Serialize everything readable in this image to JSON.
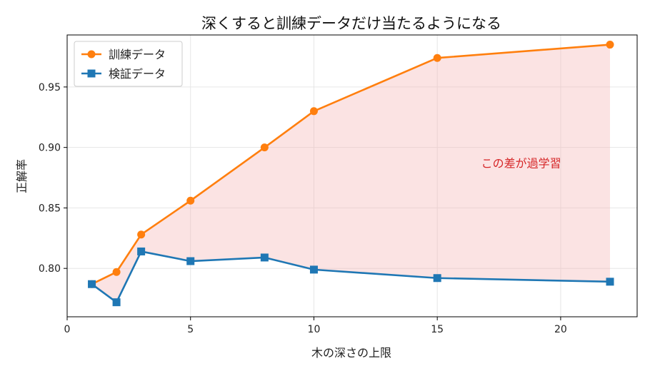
{
  "chart_data": {
    "type": "line",
    "title": "深くすると訓練データだけ当たるようになる",
    "xlabel": "木の深さの上限",
    "ylabel": "正解率",
    "xlim": [
      0,
      23.1
    ],
    "ylim": [
      0.76,
      0.993
    ],
    "x_ticks": [
      0,
      5,
      10,
      15,
      20
    ],
    "y_ticks": [
      0.8,
      0.85,
      0.9,
      0.95
    ],
    "x_tick_labels": [
      "0",
      "5",
      "10",
      "15",
      "20"
    ],
    "y_tick_labels": [
      "0.80",
      "0.85",
      "0.90",
      "0.95"
    ],
    "grid": true,
    "legend_position": "top-left",
    "x": [
      1,
      2,
      3,
      5,
      8,
      10,
      15,
      22
    ],
    "series": [
      {
        "name": "訓練データ",
        "color": "#ff7f0e",
        "marker": "circle",
        "values": [
          0.787,
          0.797,
          0.828,
          0.856,
          0.9,
          0.93,
          0.974,
          0.985
        ]
      },
      {
        "name": "検証データ",
        "color": "#1f77b4",
        "marker": "square",
        "values": [
          0.787,
          0.772,
          0.814,
          0.806,
          0.809,
          0.799,
          0.792,
          0.789
        ]
      }
    ],
    "fill_between": {
      "color": "#f4b6b6"
    },
    "annotation": {
      "text": "この差が過学習",
      "x": 18.4,
      "y": 0.887,
      "color": "#d62728"
    }
  }
}
